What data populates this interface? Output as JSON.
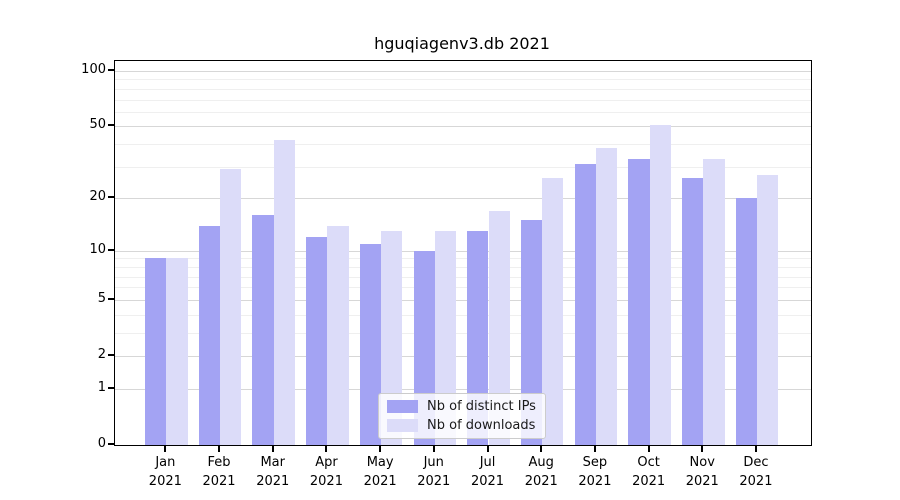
{
  "chart_data": {
    "type": "bar",
    "title": "hguqiagenv3.db 2021",
    "categories": [
      "Jan",
      "Feb",
      "Mar",
      "Apr",
      "May",
      "Jun",
      "Jul",
      "Aug",
      "Sep",
      "Oct",
      "Nov",
      "Dec"
    ],
    "category_year": "2021",
    "series": [
      {
        "name": "Nb of distinct IPs",
        "color": "#a3a3f3",
        "values": [
          9,
          14,
          16,
          12,
          11,
          10,
          13,
          15,
          31,
          33,
          26,
          20
        ]
      },
      {
        "name": "Nb of downloads",
        "color": "#dcdcf9",
        "values": [
          9,
          29,
          42,
          14,
          13,
          13,
          17,
          26,
          38,
          51,
          33,
          27
        ]
      }
    ],
    "yscale": "log1p",
    "y_major_ticks": [
      0,
      1,
      2,
      5,
      10,
      20,
      50,
      100
    ],
    "y_minor_gridlines": [
      3,
      4,
      6,
      7,
      8,
      9,
      30,
      40,
      60,
      70,
      80,
      90
    ],
    "ylim": [
      0,
      113.2
    ],
    "xlabel": "",
    "ylabel": "",
    "grid": "both",
    "legend_position": "lower center"
  }
}
